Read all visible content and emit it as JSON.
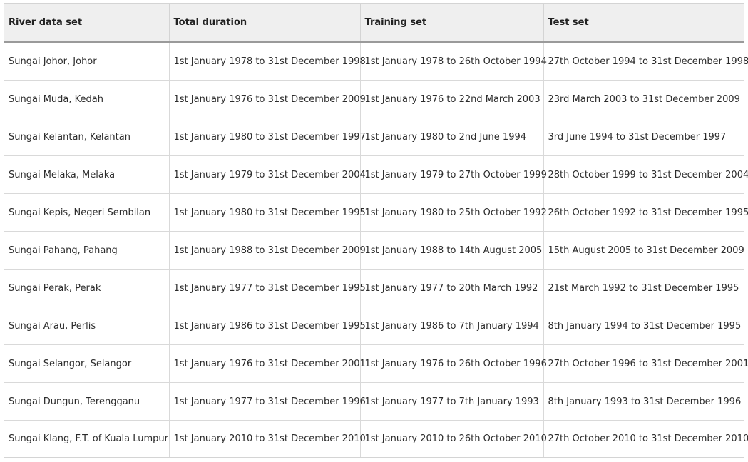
{
  "table": {
    "headers": [
      "River data set",
      "Total duration",
      "Training set",
      "Test set"
    ],
    "rows": [
      [
        "Sungai Johor, Johor",
        "1st January 1978 to 31st December 1998",
        "1st January 1978 to 26th October 1994",
        "27th October 1994 to 31st December 1998"
      ],
      [
        "Sungai Muda, Kedah",
        "1st January 1976 to 31st December 2009",
        "1st January 1976 to 22nd March 2003",
        "23rd March 2003 to 31st December 2009"
      ],
      [
        "Sungai Kelantan, Kelantan",
        "1st January 1980 to 31st December 1997",
        "1st January 1980 to 2nd June 1994",
        "3rd June 1994 to 31st December 1997"
      ],
      [
        "Sungai Melaka, Melaka",
        "1st January 1979 to 31st December 2004",
        "1st January 1979 to 27th October 1999",
        "28th October 1999 to 31st December 2004"
      ],
      [
        "Sungai Kepis, Negeri Sembilan",
        "1st January 1980 to 31st December 1995",
        "1st January 1980 to 25th October 1992",
        "26th October 1992 to 31st December 1995"
      ],
      [
        "Sungai Pahang, Pahang",
        "1st January 1988 to 31st December 2009",
        "1st January 1988 to 14th August 2005",
        "15th August 2005 to 31st December 2009"
      ],
      [
        "Sungai Perak, Perak",
        "1st January 1977 to 31st December 1995",
        "1st January 1977 to 20th March 1992",
        "21st March 1992 to 31st December 1995"
      ],
      [
        "Sungai Arau, Perlis",
        "1st January 1986 to 31st December 1995",
        "1st January 1986 to 7th January 1994",
        "8th January 1994 to 31st December 1995"
      ],
      [
        "Sungai Selangor, Selangor",
        "1st January 1976 to 31st December 2001",
        "1st January 1976 to 26th October 1996",
        "27th October 1996 to 31st December 2001"
      ],
      [
        "Sungai Dungun, Terengganu",
        "1st January 1977 to 31st December 1996",
        "1st January 1977 to 7th January 1993",
        "8th January 1993 to 31st December 1996"
      ],
      [
        "Sungai Klang, F.T. of Kuala Lumpur",
        "1st January 2010 to 31st December 2010",
        "1st January 2010 to 26th October 2010",
        "27th October 2010 to 31st December 2010"
      ]
    ]
  }
}
